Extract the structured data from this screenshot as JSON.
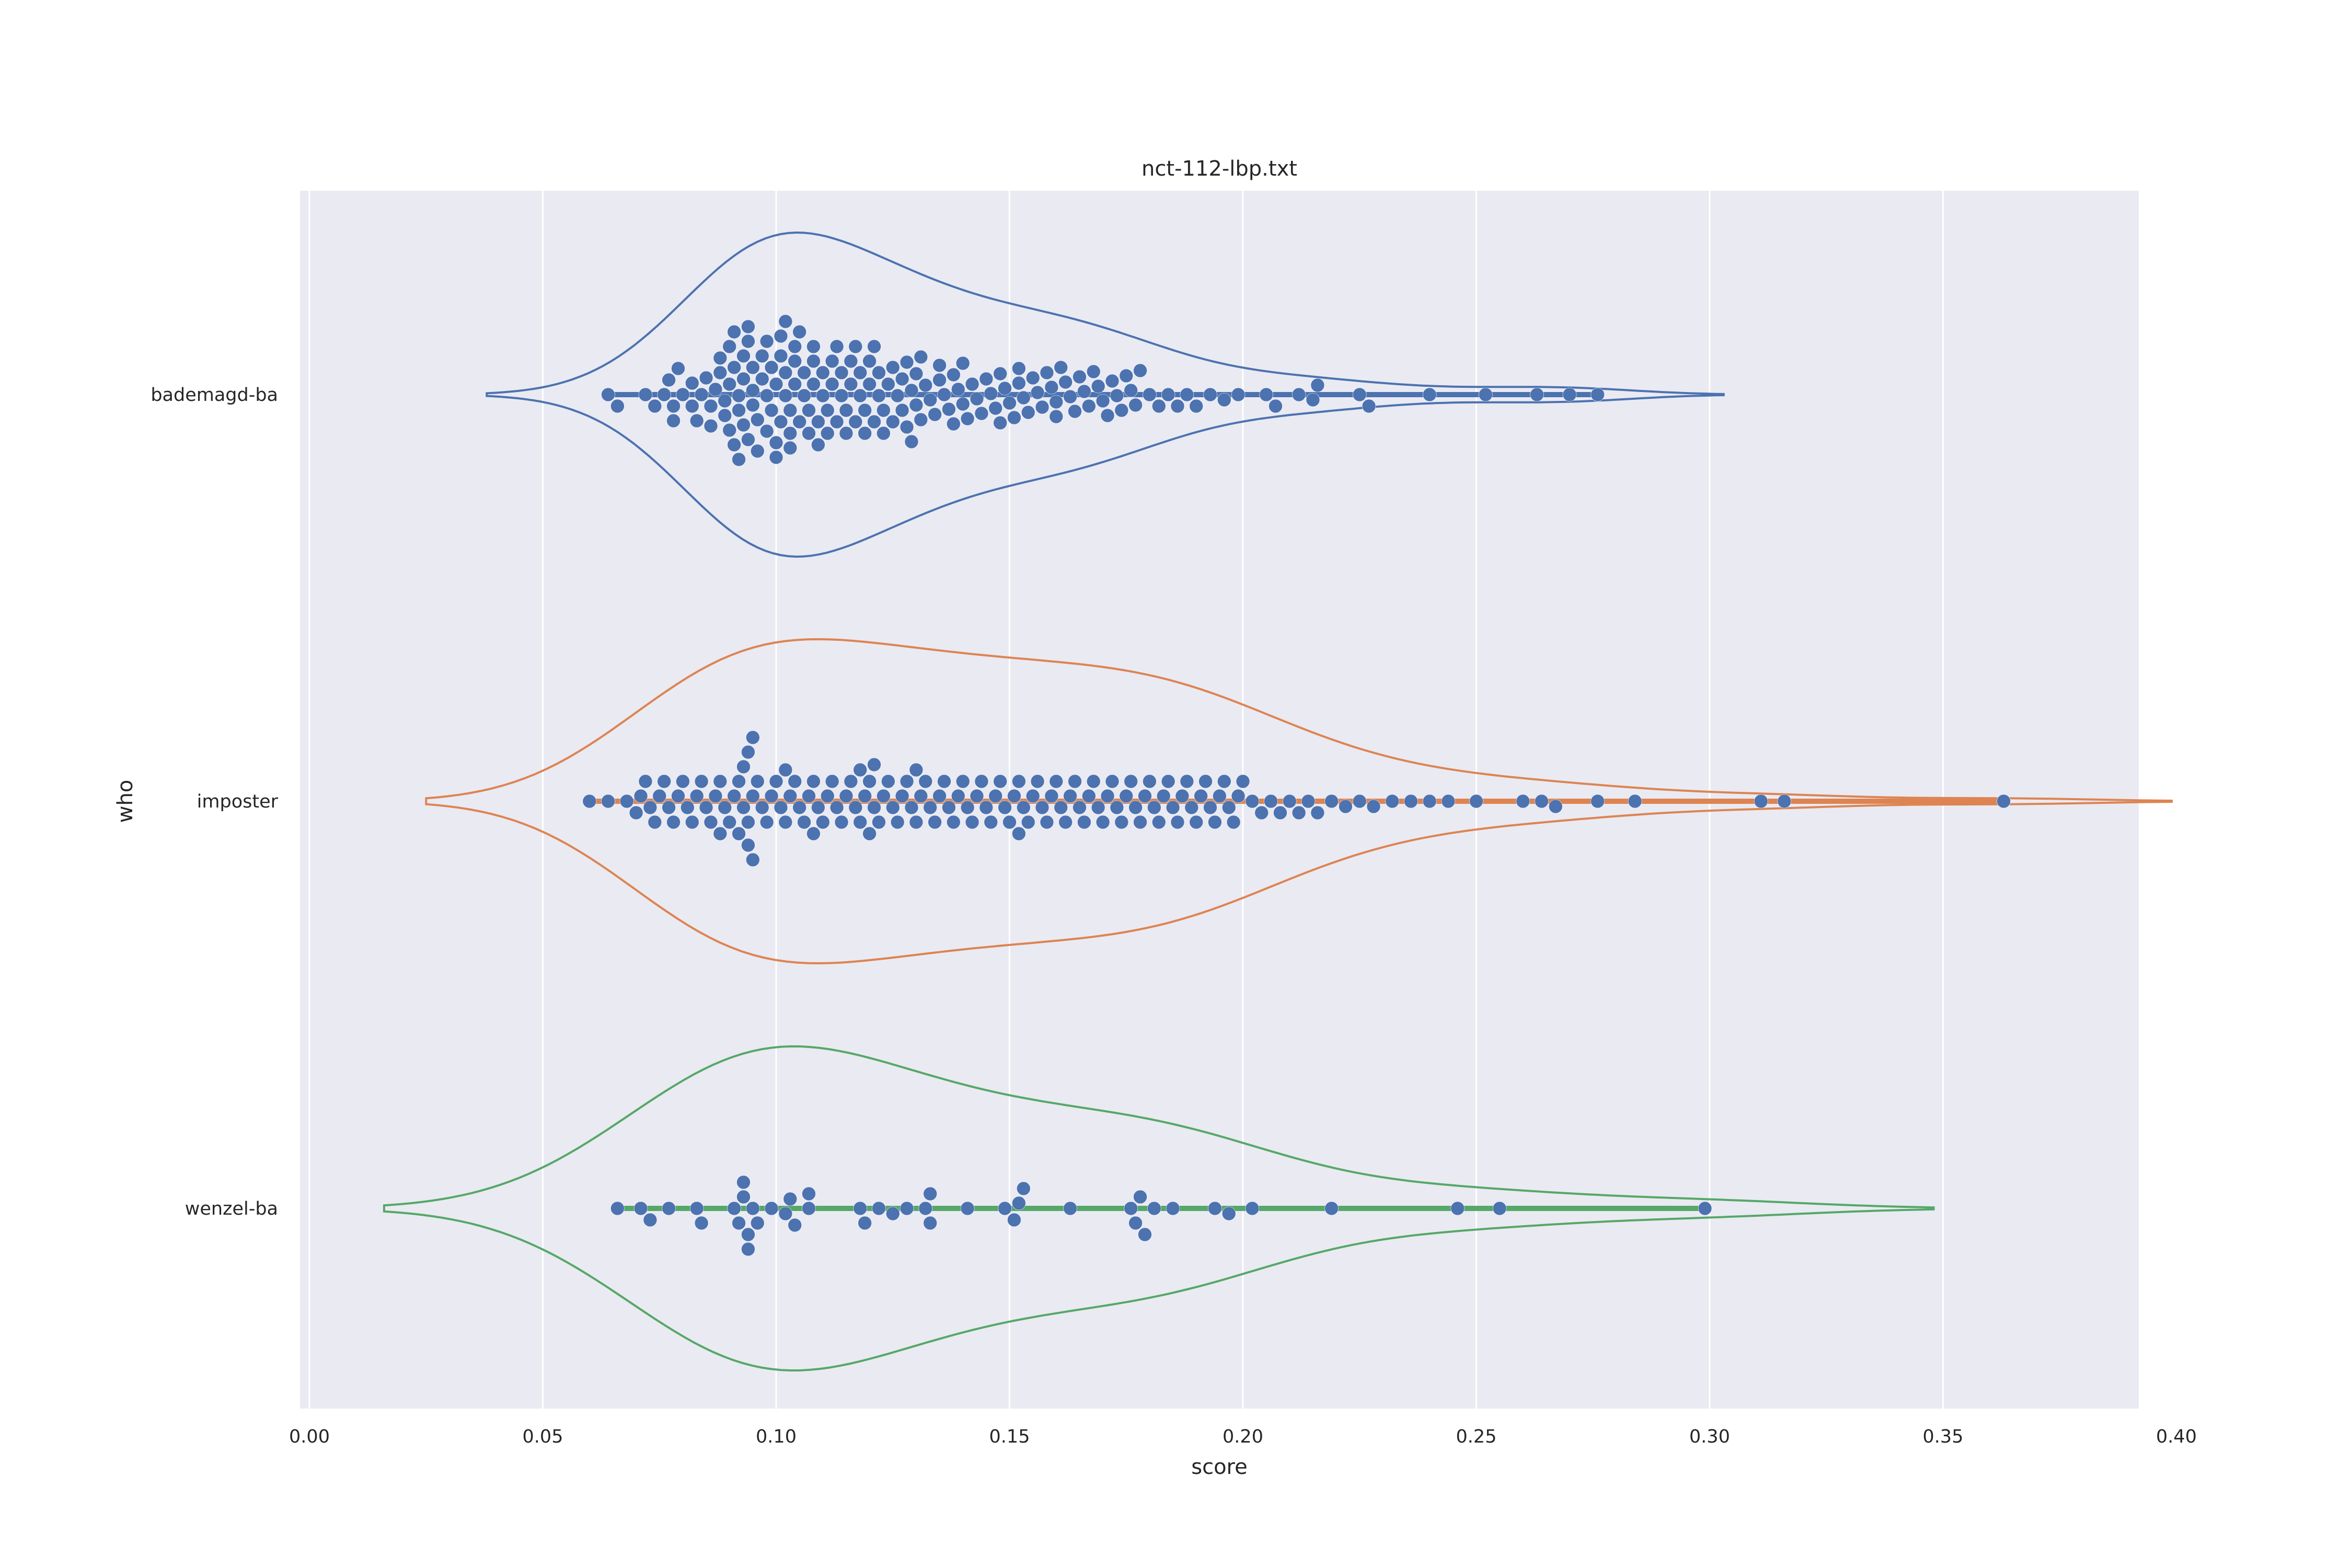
{
  "chart_data": {
    "type": "violin",
    "title": "nct-112-lbp.txt",
    "xlabel": "score",
    "ylabel": "who",
    "xlim": [
      0.0,
      0.4
    ],
    "xticks": [
      "0.00",
      "0.05",
      "0.10",
      "0.15",
      "0.20",
      "0.25",
      "0.30",
      "0.35",
      "0.40"
    ],
    "grid": true,
    "background": "#eaeaf2",
    "point_color": "#4c72b0",
    "categories": [
      "bademagd-ba",
      "imposter",
      "wenzel-ba"
    ],
    "series": [
      {
        "name": "bademagd-ba",
        "color": "#4c72b0",
        "violin_range": [
          0.038,
          0.303
        ],
        "values": [
          0.064,
          0.066,
          0.072,
          0.074,
          0.076,
          0.077,
          0.078,
          0.078,
          0.079,
          0.08,
          0.082,
          0.082,
          0.083,
          0.084,
          0.085,
          0.086,
          0.086,
          0.087,
          0.088,
          0.088,
          0.089,
          0.089,
          0.09,
          0.09,
          0.09,
          0.091,
          0.091,
          0.091,
          0.092,
          0.092,
          0.092,
          0.093,
          0.093,
          0.093,
          0.094,
          0.094,
          0.094,
          0.095,
          0.095,
          0.095,
          0.096,
          0.096,
          0.097,
          0.097,
          0.098,
          0.098,
          0.098,
          0.099,
          0.099,
          0.1,
          0.1,
          0.1,
          0.101,
          0.101,
          0.101,
          0.102,
          0.102,
          0.102,
          0.103,
          0.103,
          0.103,
          0.104,
          0.104,
          0.104,
          0.105,
          0.105,
          0.106,
          0.106,
          0.107,
          0.107,
          0.108,
          0.108,
          0.108,
          0.109,
          0.109,
          0.11,
          0.11,
          0.111,
          0.111,
          0.112,
          0.112,
          0.113,
          0.113,
          0.114,
          0.114,
          0.115,
          0.115,
          0.116,
          0.116,
          0.117,
          0.117,
          0.118,
          0.118,
          0.119,
          0.119,
          0.12,
          0.12,
          0.121,
          0.121,
          0.122,
          0.122,
          0.123,
          0.123,
          0.124,
          0.125,
          0.125,
          0.126,
          0.127,
          0.127,
          0.128,
          0.128,
          0.129,
          0.129,
          0.13,
          0.13,
          0.131,
          0.131,
          0.132,
          0.133,
          0.134,
          0.135,
          0.135,
          0.136,
          0.137,
          0.138,
          0.138,
          0.139,
          0.14,
          0.14,
          0.141,
          0.142,
          0.143,
          0.144,
          0.145,
          0.146,
          0.147,
          0.148,
          0.148,
          0.149,
          0.15,
          0.151,
          0.152,
          0.152,
          0.153,
          0.154,
          0.155,
          0.156,
          0.157,
          0.158,
          0.159,
          0.16,
          0.16,
          0.161,
          0.162,
          0.163,
          0.164,
          0.165,
          0.166,
          0.167,
          0.168,
          0.169,
          0.17,
          0.171,
          0.172,
          0.173,
          0.174,
          0.175,
          0.176,
          0.177,
          0.178,
          0.18,
          0.182,
          0.184,
          0.186,
          0.188,
          0.19,
          0.193,
          0.196,
          0.199,
          0.205,
          0.207,
          0.212,
          0.215,
          0.216,
          0.225,
          0.227,
          0.24,
          0.252,
          0.263,
          0.27,
          0.276
        ]
      },
      {
        "name": "imposter",
        "color": "#dd8452",
        "violin_range": [
          0.025,
          0.399
        ],
        "values": [
          0.06,
          0.064,
          0.068,
          0.07,
          0.071,
          0.072,
          0.073,
          0.074,
          0.075,
          0.076,
          0.077,
          0.078,
          0.079,
          0.08,
          0.081,
          0.082,
          0.083,
          0.084,
          0.085,
          0.086,
          0.087,
          0.088,
          0.088,
          0.089,
          0.09,
          0.091,
          0.092,
          0.092,
          0.093,
          0.093,
          0.094,
          0.094,
          0.094,
          0.095,
          0.095,
          0.095,
          0.096,
          0.097,
          0.098,
          0.099,
          0.1,
          0.101,
          0.102,
          0.102,
          0.103,
          0.104,
          0.105,
          0.106,
          0.107,
          0.108,
          0.108,
          0.109,
          0.11,
          0.111,
          0.112,
          0.113,
          0.114,
          0.115,
          0.116,
          0.117,
          0.118,
          0.118,
          0.119,
          0.12,
          0.12,
          0.121,
          0.121,
          0.122,
          0.123,
          0.124,
          0.125,
          0.126,
          0.127,
          0.128,
          0.129,
          0.13,
          0.13,
          0.131,
          0.132,
          0.133,
          0.134,
          0.135,
          0.136,
          0.137,
          0.138,
          0.139,
          0.14,
          0.141,
          0.142,
          0.143,
          0.144,
          0.145,
          0.146,
          0.147,
          0.148,
          0.149,
          0.15,
          0.151,
          0.152,
          0.152,
          0.153,
          0.154,
          0.155,
          0.156,
          0.157,
          0.158,
          0.159,
          0.16,
          0.161,
          0.162,
          0.163,
          0.164,
          0.165,
          0.166,
          0.167,
          0.168,
          0.169,
          0.17,
          0.171,
          0.172,
          0.173,
          0.174,
          0.175,
          0.176,
          0.177,
          0.178,
          0.179,
          0.18,
          0.181,
          0.182,
          0.183,
          0.184,
          0.185,
          0.186,
          0.187,
          0.188,
          0.189,
          0.19,
          0.191,
          0.192,
          0.193,
          0.194,
          0.195,
          0.196,
          0.197,
          0.198,
          0.199,
          0.2,
          0.202,
          0.204,
          0.206,
          0.208,
          0.21,
          0.212,
          0.214,
          0.216,
          0.219,
          0.222,
          0.225,
          0.228,
          0.232,
          0.236,
          0.24,
          0.244,
          0.25,
          0.26,
          0.264,
          0.267,
          0.276,
          0.284,
          0.311,
          0.316,
          0.363
        ]
      },
      {
        "name": "wenzel-ba",
        "color": "#55a868",
        "violin_range": [
          0.016,
          0.348
        ],
        "values": [
          0.066,
          0.071,
          0.073,
          0.077,
          0.083,
          0.084,
          0.091,
          0.092,
          0.093,
          0.093,
          0.094,
          0.094,
          0.095,
          0.096,
          0.099,
          0.102,
          0.103,
          0.104,
          0.107,
          0.107,
          0.118,
          0.119,
          0.122,
          0.125,
          0.128,
          0.132,
          0.133,
          0.133,
          0.141,
          0.149,
          0.151,
          0.152,
          0.153,
          0.163,
          0.176,
          0.177,
          0.178,
          0.179,
          0.181,
          0.185,
          0.194,
          0.197,
          0.202,
          0.219,
          0.246,
          0.255,
          0.299
        ]
      }
    ]
  }
}
